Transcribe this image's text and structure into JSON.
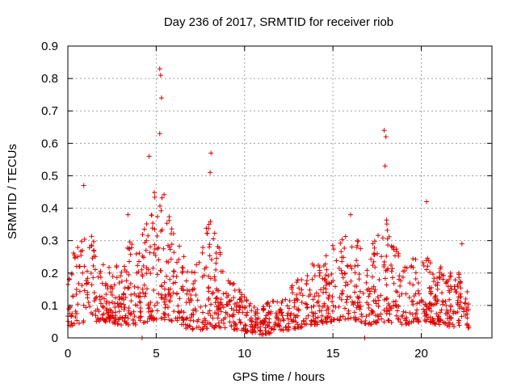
{
  "chart_data": {
    "type": "scatter",
    "title": "Day 236 of 2017, SRMTID for receiver riob",
    "xlabel": "GPS time / hours",
    "ylabel": "SRMTID / TECUs",
    "xlim": [
      0,
      24
    ],
    "ylim": [
      0,
      0.9
    ],
    "xticks": [
      0,
      5,
      10,
      15,
      20
    ],
    "xtick_labels": [
      "0",
      "5",
      "10",
      "15",
      "20"
    ],
    "yticks": [
      0,
      0.1,
      0.2,
      0.3,
      0.4,
      0.5,
      0.6,
      0.7,
      0.8,
      0.9
    ],
    "ytick_labels": [
      "0",
      "0.1",
      "0.2",
      "0.3",
      "0.4",
      "0.5",
      "0.6",
      "0.7",
      "0.8",
      "0.9"
    ],
    "grid": true,
    "marker": "+",
    "color": "#e00000",
    "series": [
      {
        "name": "SRMTID",
        "peaks": [
          {
            "x": 0.9,
            "y": 0.47
          },
          {
            "x": 3.4,
            "y": 0.38
          },
          {
            "x": 4.6,
            "y": 0.56
          },
          {
            "x": 5.2,
            "y": 0.83
          },
          {
            "x": 5.25,
            "y": 0.81
          },
          {
            "x": 5.3,
            "y": 0.74
          },
          {
            "x": 5.2,
            "y": 0.63
          },
          {
            "x": 8.1,
            "y": 0.57
          },
          {
            "x": 8.05,
            "y": 0.51
          },
          {
            "x": 16.0,
            "y": 0.38
          },
          {
            "x": 17.9,
            "y": 0.64
          },
          {
            "x": 18.0,
            "y": 0.62
          },
          {
            "x": 17.95,
            "y": 0.53
          },
          {
            "x": 20.3,
            "y": 0.42
          },
          {
            "x": 22.3,
            "y": 0.29
          }
        ],
        "envelope": [
          {
            "x": 0.0,
            "lo": 0.03,
            "hi": 0.2
          },
          {
            "x": 0.5,
            "lo": 0.04,
            "hi": 0.3
          },
          {
            "x": 1.0,
            "lo": 0.05,
            "hi": 0.35
          },
          {
            "x": 2.0,
            "lo": 0.05,
            "hi": 0.25
          },
          {
            "x": 3.0,
            "lo": 0.04,
            "hi": 0.22
          },
          {
            "x": 3.5,
            "lo": 0.04,
            "hi": 0.3
          },
          {
            "x": 4.0,
            "lo": 0.04,
            "hi": 0.28
          },
          {
            "x": 4.5,
            "lo": 0.05,
            "hi": 0.4
          },
          {
            "x": 5.2,
            "lo": 0.06,
            "hi": 0.5
          },
          {
            "x": 6.0,
            "lo": 0.05,
            "hi": 0.33
          },
          {
            "x": 7.0,
            "lo": 0.02,
            "hi": 0.2
          },
          {
            "x": 8.0,
            "lo": 0.03,
            "hi": 0.38
          },
          {
            "x": 9.0,
            "lo": 0.03,
            "hi": 0.2
          },
          {
            "x": 10.0,
            "lo": 0.02,
            "hi": 0.13
          },
          {
            "x": 11.0,
            "lo": 0.01,
            "hi": 0.1
          },
          {
            "x": 12.0,
            "lo": 0.02,
            "hi": 0.13
          },
          {
            "x": 13.0,
            "lo": 0.03,
            "hi": 0.18
          },
          {
            "x": 14.0,
            "lo": 0.04,
            "hi": 0.24
          },
          {
            "x": 15.0,
            "lo": 0.05,
            "hi": 0.3
          },
          {
            "x": 16.0,
            "lo": 0.06,
            "hi": 0.33
          },
          {
            "x": 17.0,
            "lo": 0.04,
            "hi": 0.26
          },
          {
            "x": 18.0,
            "lo": 0.05,
            "hi": 0.38
          },
          {
            "x": 19.0,
            "lo": 0.04,
            "hi": 0.22
          },
          {
            "x": 20.0,
            "lo": 0.05,
            "hi": 0.28
          },
          {
            "x": 21.0,
            "lo": 0.04,
            "hi": 0.22
          },
          {
            "x": 22.0,
            "lo": 0.03,
            "hi": 0.22
          },
          {
            "x": 22.7,
            "lo": 0.03,
            "hi": 0.15
          }
        ]
      }
    ]
  }
}
